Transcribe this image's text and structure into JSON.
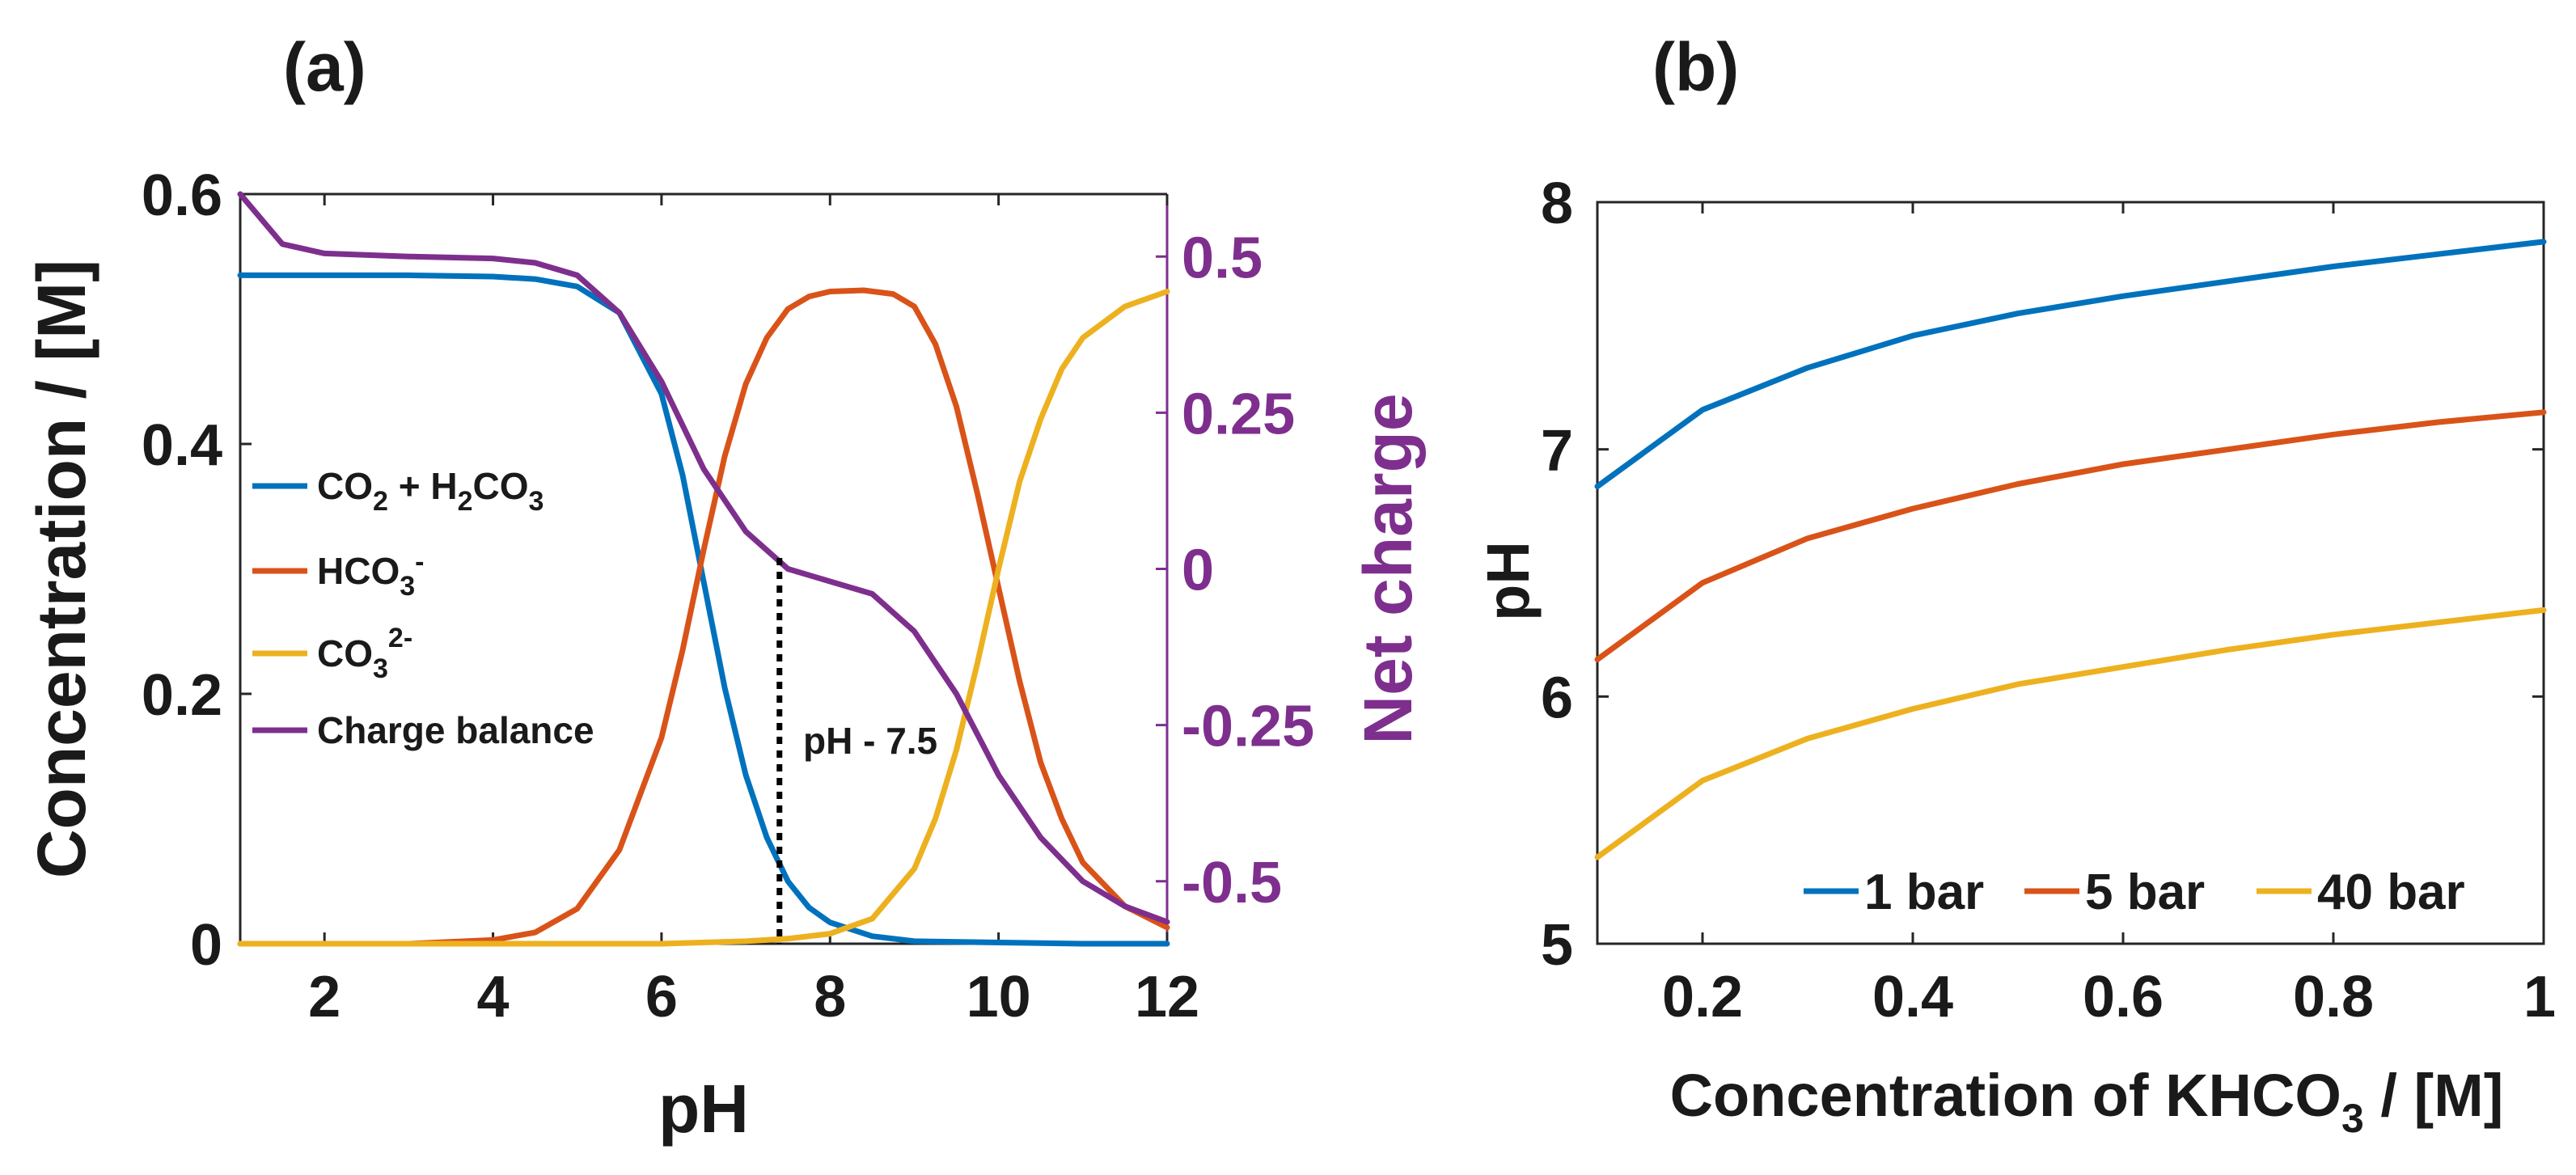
{
  "chart_data": [
    {
      "type": "line",
      "panel_label": "(a)",
      "xlabel": "pH",
      "ylabel": "Concentration / [M]",
      "y2label": "Net charge",
      "xlim": [
        1,
        12
      ],
      "ylim": [
        0,
        0.6
      ],
      "y2lim": [
        -0.6,
        0.6
      ],
      "xticks": [
        "2",
        "4",
        "6",
        "8",
        "10",
        "12"
      ],
      "yticks": [
        "0",
        "0.2",
        "0.4",
        "0.6"
      ],
      "y2ticks": [
        "-0.5",
        "-0.25",
        "0",
        "0.25",
        "0.5"
      ],
      "annotation": {
        "text": "pH - 7.5",
        "x": 7.4
      },
      "legend_position": "center-left",
      "series": [
        {
          "name": "CO2 + H2CO3",
          "label_main": "CO",
          "color": "#0072bd",
          "axis": "left",
          "x": [
            1,
            2,
            3,
            4,
            4.5,
            5,
            5.5,
            6,
            6.25,
            6.5,
            6.75,
            7,
            7.25,
            7.5,
            7.75,
            8,
            8.5,
            9,
            10,
            11,
            12
          ],
          "y": [
            0.535,
            0.535,
            0.535,
            0.534,
            0.532,
            0.526,
            0.505,
            0.44,
            0.375,
            0.29,
            0.205,
            0.135,
            0.085,
            0.05,
            0.029,
            0.017,
            0.006,
            0.002,
            0.001,
            0.0,
            0.0
          ]
        },
        {
          "name": "HCO3-",
          "label_main": "HCO",
          "color": "#d95319",
          "axis": "left",
          "x": [
            1,
            2,
            3,
            4,
            4.5,
            5,
            5.5,
            6,
            6.25,
            6.5,
            6.75,
            7,
            7.25,
            7.5,
            7.75,
            8,
            8.4,
            8.75,
            9,
            9.25,
            9.5,
            9.75,
            10,
            10.25,
            10.5,
            10.75,
            11,
            11.5,
            12
          ],
          "y": [
            0.0,
            0.0,
            0.0,
            0.003,
            0.009,
            0.028,
            0.075,
            0.165,
            0.235,
            0.315,
            0.39,
            0.448,
            0.485,
            0.508,
            0.518,
            0.522,
            0.523,
            0.52,
            0.51,
            0.48,
            0.43,
            0.36,
            0.285,
            0.21,
            0.145,
            0.1,
            0.065,
            0.03,
            0.013
          ]
        },
        {
          "name": "CO3 2-",
          "label_main": "CO",
          "color": "#edb120",
          "axis": "left",
          "x": [
            1,
            6,
            7,
            7.5,
            8,
            8.5,
            9,
            9.25,
            9.5,
            9.75,
            10,
            10.25,
            10.5,
            10.75,
            11,
            11.5,
            12
          ],
          "y": [
            0.0,
            0.0,
            0.002,
            0.004,
            0.008,
            0.02,
            0.06,
            0.1,
            0.155,
            0.225,
            0.3,
            0.37,
            0.42,
            0.46,
            0.485,
            0.51,
            0.522
          ]
        },
        {
          "name": "Charge balance",
          "label_main": "Charge balance",
          "color": "#7e2f8e",
          "axis": "right",
          "x": [
            1,
            1.5,
            2,
            3,
            4,
            4.5,
            5,
            5.5,
            6,
            6.5,
            7,
            7.5,
            8,
            8.5,
            9,
            9.5,
            10,
            10.5,
            11,
            11.5,
            12
          ],
          "y": [
            0.6,
            0.52,
            0.505,
            0.5,
            0.497,
            0.49,
            0.47,
            0.41,
            0.3,
            0.16,
            0.06,
            0.0,
            -0.02,
            -0.04,
            -0.1,
            -0.2,
            -0.33,
            -0.43,
            -0.5,
            -0.54,
            -0.565
          ]
        }
      ]
    },
    {
      "type": "line",
      "panel_label": "(b)",
      "xlabel": "Concentration of KHCO",
      "xlabel_sub": "3",
      "xlabel_tail": " / [M]",
      "ylabel": "pH",
      "xlim": [
        0.1,
        1
      ],
      "ylim": [
        5,
        8
      ],
      "xticks": [
        "0.2",
        "0.4",
        "0.6",
        "0.8",
        "1"
      ],
      "yticks": [
        "5",
        "6",
        "7",
        "8"
      ],
      "legend_position": "bottom-right",
      "series": [
        {
          "name": "1 bar",
          "color": "#0072bd",
          "x": [
            0.1,
            0.2,
            0.3,
            0.4,
            0.5,
            0.6,
            0.7,
            0.8,
            0.9,
            1.0
          ],
          "y": [
            6.85,
            7.16,
            7.33,
            7.46,
            7.55,
            7.62,
            7.68,
            7.74,
            7.79,
            7.84
          ]
        },
        {
          "name": "5 bar",
          "color": "#d95319",
          "x": [
            0.1,
            0.2,
            0.3,
            0.4,
            0.5,
            0.6,
            0.7,
            0.8,
            0.9,
            1.0
          ],
          "y": [
            6.15,
            6.46,
            6.64,
            6.76,
            6.86,
            6.94,
            7.0,
            7.06,
            7.11,
            7.15
          ]
        },
        {
          "name": "40 bar",
          "color": "#edb120",
          "x": [
            0.1,
            0.2,
            0.3,
            0.4,
            0.5,
            0.6,
            0.7,
            0.8,
            0.9,
            1.0
          ],
          "y": [
            5.35,
            5.66,
            5.83,
            5.95,
            6.05,
            6.12,
            6.19,
            6.25,
            6.3,
            6.35
          ]
        }
      ]
    }
  ]
}
